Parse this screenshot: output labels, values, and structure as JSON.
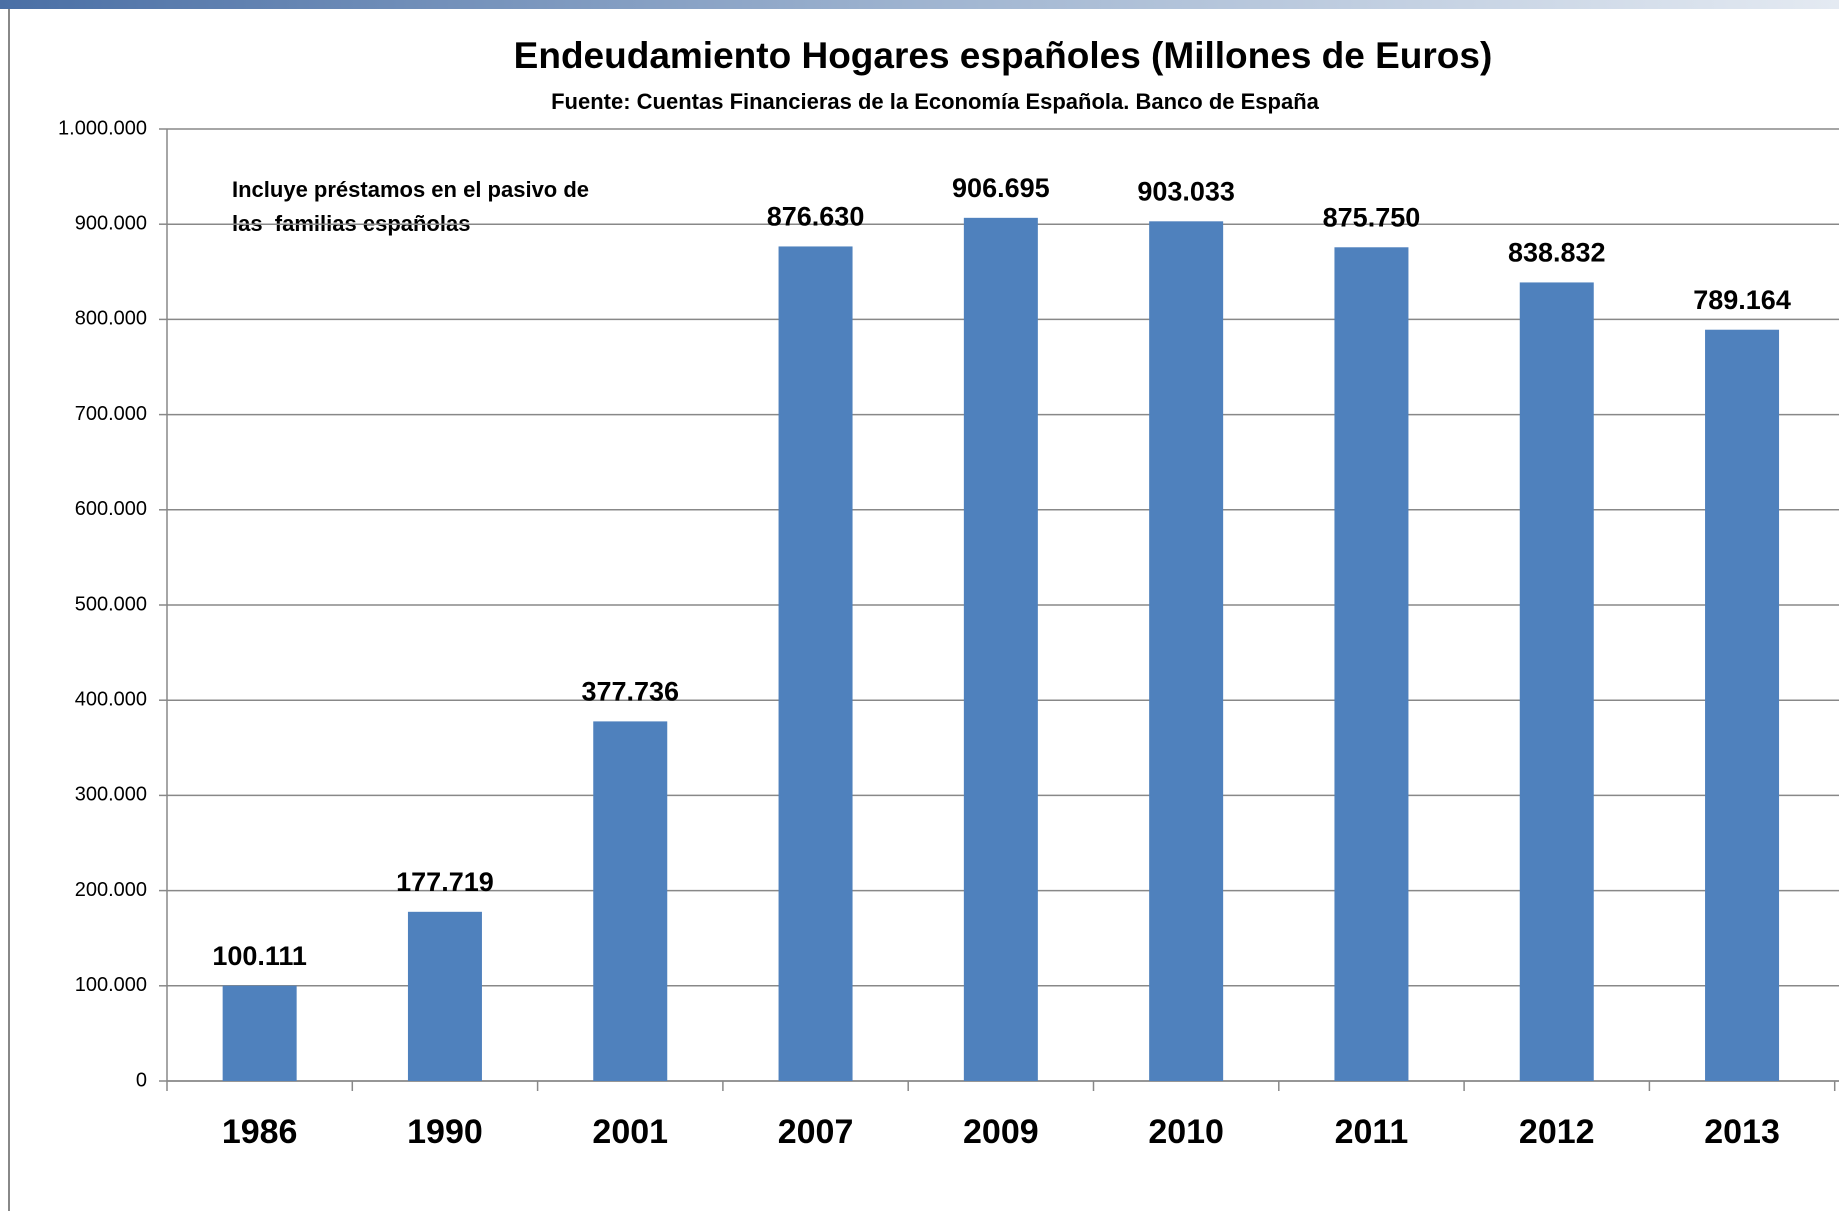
{
  "chart_data": {
    "type": "bar",
    "title": "Endeudamiento Hogares españoles (Millones de Euros)",
    "subtitle": "Fuente: Cuentas Financieras de la Economía Española. Banco de España",
    "annotation": [
      "Incluye préstamos en el pasivo de",
      "las  familias españolas"
    ],
    "categories": [
      "1986",
      "1990",
      "2001",
      "2007",
      "2009",
      "2010",
      "2011",
      "2012",
      "2013"
    ],
    "values": [
      100111,
      177719,
      377736,
      876630,
      906695,
      903033,
      875750,
      838832,
      789164
    ],
    "value_labels": [
      "100.111",
      "177.719",
      "377.736",
      "876.630",
      "906.695",
      "903.033",
      "875.750",
      "838.832",
      "789.164"
    ],
    "color": "#4f81bd",
    "ylim": [
      0,
      1000000
    ],
    "yticks": [
      0,
      {
        "value": 100000,
        "label": "100.000"
      },
      {
        "value": 200000,
        "label": "200.000"
      },
      {
        "value": 300000,
        "label": "300.000"
      },
      {
        "value": 400000,
        "label": "400.000"
      },
      {
        "value": 500000,
        "label": "500.000"
      },
      {
        "value": 600000,
        "label": "600.000"
      },
      {
        "value": 700000,
        "label": "700.000"
      },
      {
        "value": 800000,
        "label": "800.000"
      },
      {
        "value": 900000,
        "label": "900.000"
      },
      {
        "value": 1000000,
        "label": "1.000.000"
      }
    ],
    "grid": true
  }
}
